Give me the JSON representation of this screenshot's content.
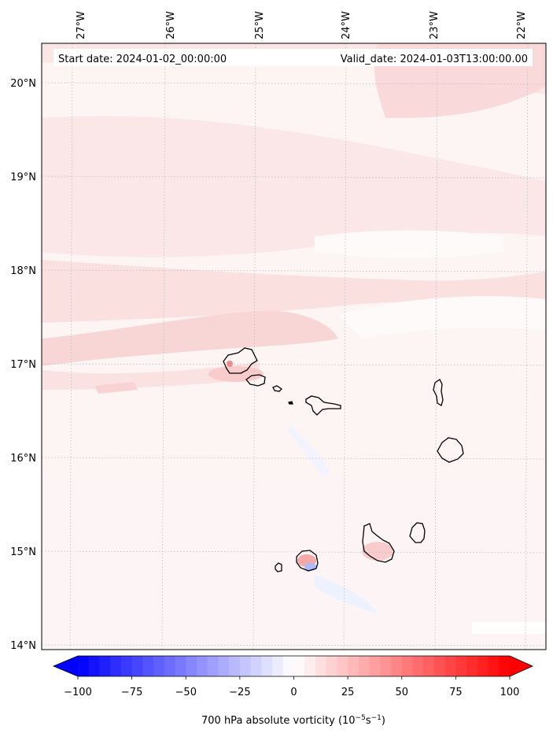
{
  "header": {
    "start_date": "Start date: 2024-01-02_00:00:00",
    "valid_date": "Valid_date: 2024-01-03T13:00:00.00"
  },
  "axes": {
    "lon_ticks": [
      "27°W",
      "26°W",
      "25°W",
      "24°W",
      "23°W",
      "22°W"
    ],
    "lat_ticks": [
      "20°N",
      "19°N",
      "18°N",
      "17°N",
      "16°N",
      "15°N",
      "14°N"
    ]
  },
  "colorbar": {
    "ticks": [
      "−100",
      "−75",
      "−50",
      "−25",
      "0",
      "25",
      "50",
      "75",
      "100"
    ],
    "range": [
      -100,
      100
    ],
    "step": 5,
    "label": "700 hPa absolute vorticity (10",
    "label_exp1": "−5",
    "label_mid": "s",
    "label_exp2": "−1",
    "label_end": ")",
    "colors": {
      "negative": "#0000ff",
      "zero": "#ffffff",
      "positive": "#ff0000"
    }
  },
  "colors": {
    "background_fill": "#fdf3f3",
    "light_red": "#fbdede",
    "light_blue": "#eef1ff",
    "island_outline": "#000000",
    "grid": "#b0b0b0"
  }
}
